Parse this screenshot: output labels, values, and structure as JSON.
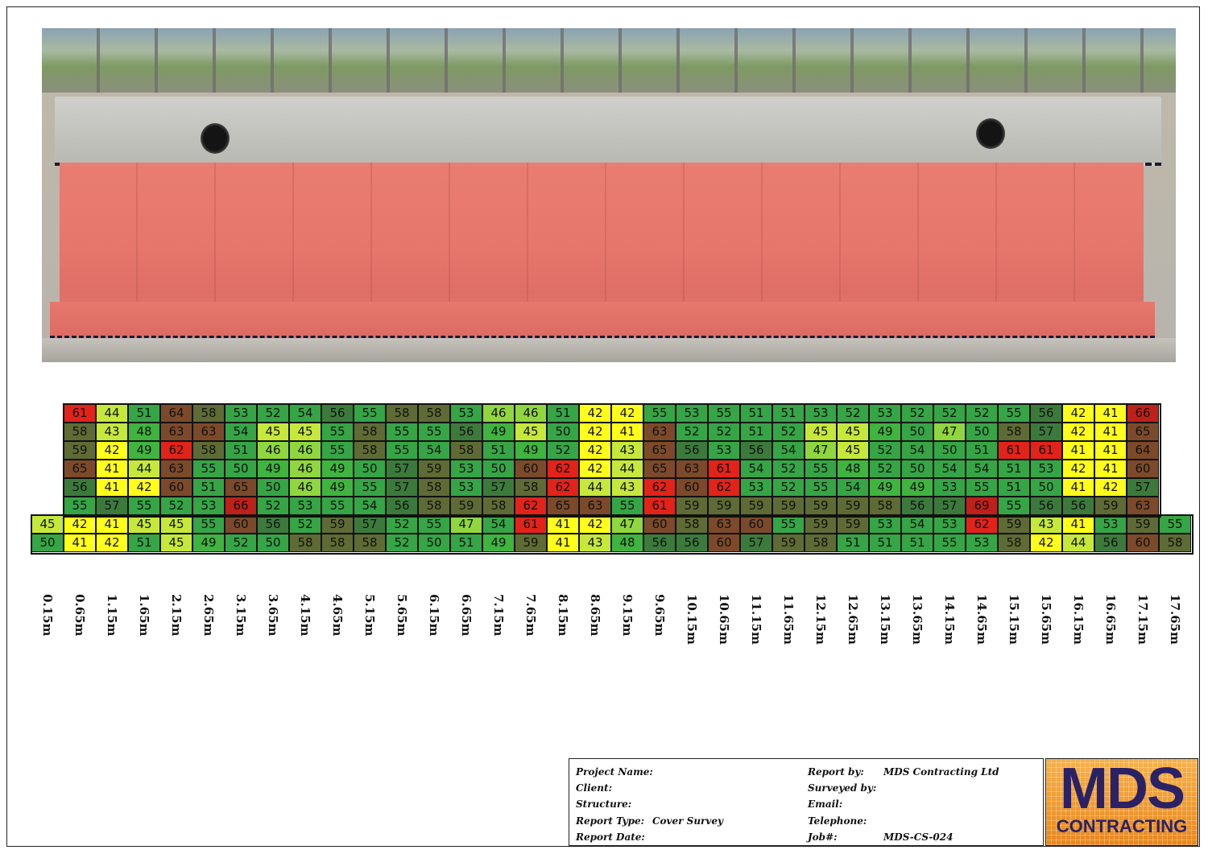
{
  "cover_grid": {
    "x_labels": [
      "0.15m",
      "0.65m",
      "1.15m",
      "1.65m",
      "2.15m",
      "2.65m",
      "3.15m",
      "3.65m",
      "4.15m",
      "4.65m",
      "5.15m",
      "5.65m",
      "6.15m",
      "6.65m",
      "7.15m",
      "7.65m",
      "8.15m",
      "8.65m",
      "9.15m",
      "9.65m",
      "10.15m",
      "10.65m",
      "11.15m",
      "11.65m",
      "12.15m",
      "12.65m",
      "13.15m",
      "13.65m",
      "14.15m",
      "14.65m",
      "15.15m",
      "15.65m",
      "16.15m",
      "16.65m",
      "17.15m",
      "17.65m"
    ],
    "rows": [
      [
        null,
        61,
        44,
        51,
        64,
        58,
        53,
        52,
        54,
        56,
        55,
        58,
        58,
        53,
        46,
        46,
        51,
        42,
        42,
        55,
        53,
        55,
        51,
        51,
        53,
        52,
        53,
        52,
        52,
        52,
        55,
        56,
        42,
        41,
        66,
        null
      ],
      [
        null,
        58,
        43,
        48,
        63,
        63,
        54,
        45,
        45,
        55,
        58,
        55,
        55,
        56,
        49,
        45,
        50,
        42,
        41,
        63,
        52,
        52,
        51,
        52,
        45,
        45,
        49,
        50,
        47,
        50,
        58,
        57,
        42,
        41,
        65,
        null
      ],
      [
        null,
        59,
        42,
        49,
        62,
        58,
        51,
        46,
        46,
        55,
        58,
        55,
        54,
        58,
        51,
        49,
        52,
        42,
        43,
        65,
        56,
        53,
        56,
        54,
        47,
        45,
        52,
        54,
        50,
        51,
        61,
        61,
        41,
        41,
        64,
        null
      ],
      [
        null,
        65,
        41,
        44,
        63,
        55,
        50,
        49,
        46,
        49,
        50,
        57,
        59,
        53,
        50,
        60,
        62,
        42,
        44,
        65,
        63,
        61,
        54,
        52,
        55,
        48,
        52,
        50,
        54,
        54,
        51,
        53,
        42,
        41,
        60,
        null
      ],
      [
        null,
        56,
        41,
        42,
        60,
        51,
        65,
        50,
        46,
        49,
        55,
        57,
        58,
        53,
        57,
        58,
        62,
        44,
        43,
        62,
        60,
        62,
        53,
        52,
        55,
        54,
        49,
        49,
        53,
        55,
        51,
        50,
        41,
        42,
        57,
        null
      ],
      [
        null,
        55,
        57,
        55,
        52,
        53,
        66,
        52,
        53,
        55,
        54,
        56,
        58,
        59,
        58,
        62,
        65,
        63,
        55,
        61,
        59,
        59,
        59,
        59,
        59,
        59,
        58,
        56,
        57,
        69,
        55,
        56,
        56,
        59,
        63,
        null
      ],
      [
        45,
        42,
        41,
        45,
        45,
        55,
        60,
        56,
        52,
        59,
        57,
        52,
        55,
        47,
        54,
        61,
        41,
        42,
        47,
        60,
        58,
        63,
        60,
        55,
        59,
        59,
        53,
        54,
        53,
        62,
        59,
        43,
        41,
        53,
        59,
        55
      ],
      [
        50,
        41,
        42,
        51,
        45,
        49,
        52,
        50,
        58,
        58,
        58,
        52,
        50,
        51,
        49,
        59,
        41,
        43,
        48,
        56,
        56,
        60,
        57,
        59,
        58,
        51,
        51,
        51,
        55,
        53,
        58,
        42,
        44,
        56,
        60,
        58
      ]
    ]
  },
  "title_block": {
    "project_name_label": "Project Name:",
    "client_label": "Client:",
    "structure_label": "Structure:",
    "report_type_label": "Report Type:",
    "report_type_value": "Cover Survey",
    "report_date_label": "Report Date:",
    "report_by_label": "Report by:",
    "report_by_value": "MDS Contracting Ltd",
    "surveyed_by_label": "Surveyed by:",
    "email_label": "Email:",
    "telephone_label": "Telephone:",
    "job_label": "Job#:",
    "job_value": "MDS-CS-024"
  },
  "logo": {
    "primary": "MDS",
    "secondary": "CONTRACTING"
  },
  "colors": {
    "bright_yellow": "#ffff1a",
    "yellow_green": "#c6e83a",
    "light_green": "#8fd63f",
    "green": "#3fb43f",
    "mid_green": "#35a545",
    "dark_green": "#3c7a3c",
    "olive": "#5e6b34",
    "brown": "#7c4a2a",
    "red": "#e2231a",
    "deep_red": "#c0201a"
  }
}
